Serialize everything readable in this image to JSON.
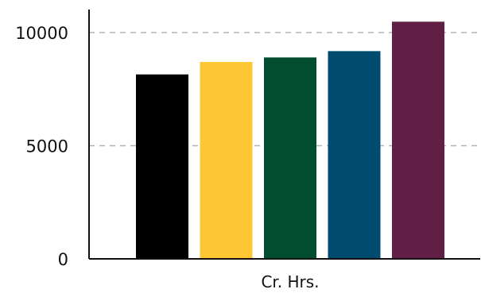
{
  "chart_data": {
    "type": "bar",
    "xlabel": "Cr. Hrs.",
    "ylabel": "",
    "ylim": [
      0,
      10500
    ],
    "yticks": [
      0,
      5000,
      10000
    ],
    "grid": {
      "y": true,
      "style": "dashed"
    },
    "legend": "none",
    "bars": [
      {
        "value": 8150,
        "color": "#000000"
      },
      {
        "value": 8700,
        "color": "#FDC734"
      },
      {
        "value": 8900,
        "color": "#024D30"
      },
      {
        "value": 9180,
        "color": "#004C6F"
      },
      {
        "value": 10480,
        "color": "#621F45"
      }
    ]
  }
}
